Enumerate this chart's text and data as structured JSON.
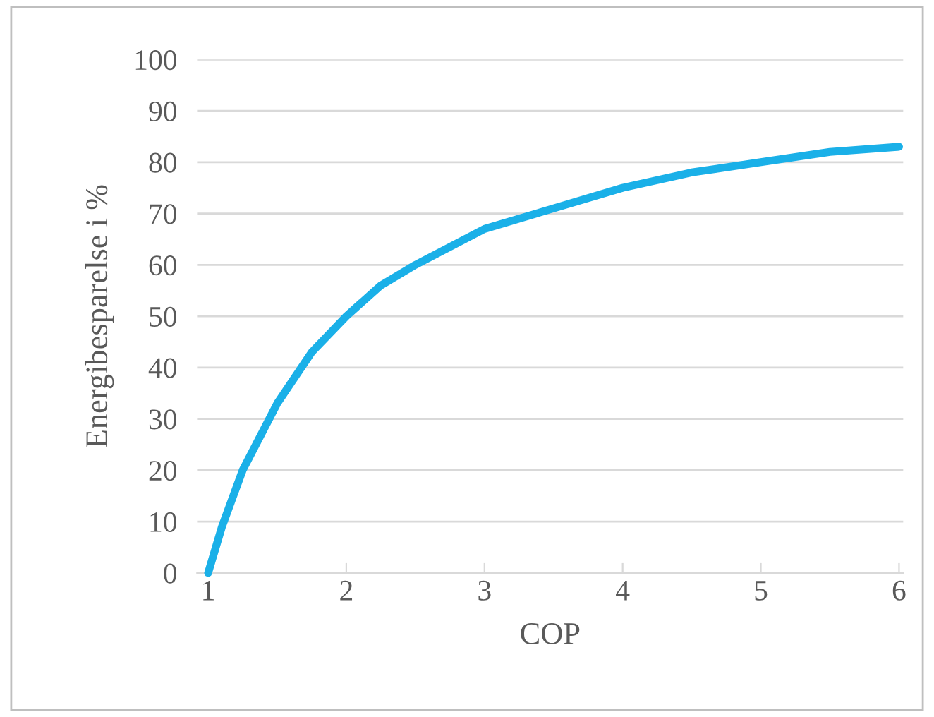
{
  "chart_data": {
    "type": "line",
    "xlabel": "COP",
    "ylabel": "Energibesparelse i %",
    "x": [
      1,
      1.1,
      1.25,
      1.5,
      1.75,
      2,
      2.25,
      2.5,
      3,
      3.5,
      4,
      4.5,
      5,
      5.5,
      6
    ],
    "series": [
      {
        "color": "#1ab0e8",
        "values": [
          0,
          9,
          20,
          33,
          43,
          50,
          56,
          60,
          67,
          71,
          75,
          78,
          80,
          82,
          83
        ]
      }
    ],
    "xlim": [
      0.92,
      6.03
    ],
    "xticks": [
      1,
      2,
      3,
      4,
      5,
      6
    ],
    "ylim": [
      0,
      100
    ],
    "yticks": [
      0,
      10,
      20,
      30,
      40,
      50,
      60,
      70,
      80,
      90,
      100
    ],
    "grid": "y",
    "marker": "none",
    "line_style": "solid"
  }
}
